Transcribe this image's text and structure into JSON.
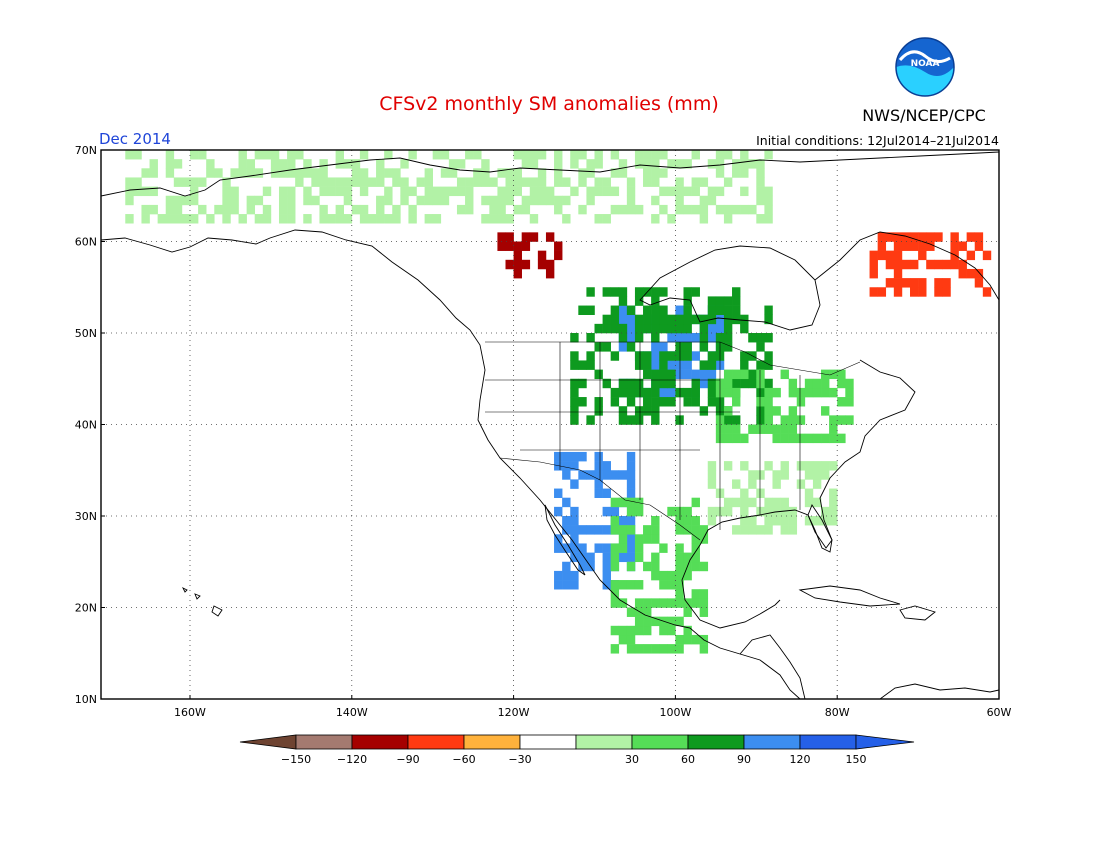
{
  "header": {
    "title": "CFSv2 monthly SM anomalies (mm)",
    "agency": "NWS/NCEP/CPC",
    "logo_text": "NOAA",
    "valid_month": "Dec 2014",
    "initial_conditions": "Initial conditions: 12Jul2014–21Jul2014"
  },
  "map": {
    "lat_labels": [
      "70N",
      "60N",
      "50N",
      "40N",
      "30N",
      "20N",
      "10N"
    ],
    "lon_labels": [
      "160W",
      "140W",
      "120W",
      "100W",
      "80W",
      "60W"
    ],
    "lat_values": [
      70,
      60,
      50,
      40,
      30,
      20,
      10
    ],
    "lon_values": [
      -160,
      -140,
      -120,
      -100,
      -80,
      -60
    ],
    "extent": {
      "lon_min": -171,
      "lon_max": -60,
      "lat_min": 10,
      "lat_max": 70
    },
    "grid": true,
    "ocean_color": "#ffffff",
    "coastline_color": "#000000"
  },
  "colorbar": {
    "labels": [
      "−150",
      "−120",
      "−90",
      "−60",
      "−30",
      "30",
      "60",
      "90",
      "120",
      "150"
    ],
    "colors": [
      "#6e4331",
      "#a47a70",
      "#a50000",
      "#ff3a12",
      "#ffb23c",
      "#ffffff",
      "#b2f2a6",
      "#55dd57",
      "#0e9a1f",
      "#3c8ef0",
      "#2560e8"
    ],
    "left_triangle_color": "#6e4331",
    "right_triangle_color": "#2560e8"
  },
  "anomaly_regions": [
    {
      "name": "upper-midwest-canada-wet",
      "lat": [
        43,
        53
      ],
      "lon": [
        -107,
        -94
      ],
      "class": "150",
      "color": "#3c8ef0"
    },
    {
      "name": "upper-midwest-green",
      "lat": [
        40,
        55
      ],
      "lon": [
        -113,
        -88
      ],
      "class": "120",
      "color": "#0e9a1f"
    },
    {
      "name": "great-lakes-green",
      "lat": [
        38,
        46
      ],
      "lon": [
        -95,
        -78
      ],
      "class": "90",
      "color": "#55dd57"
    },
    {
      "name": "southwest-wet",
      "lat": [
        22,
        37
      ],
      "lon": [
        -115,
        -105
      ],
      "class": "150",
      "color": "#3c8ef0"
    },
    {
      "name": "mexico-green",
      "lat": [
        15,
        32
      ],
      "lon": [
        -108,
        -96
      ],
      "class": "90",
      "color": "#55dd57"
    },
    {
      "name": "central-canada-dry",
      "lat": [
        56,
        61
      ],
      "lon": [
        -122,
        -114
      ],
      "class": "-90",
      "color": "#a50000"
    },
    {
      "name": "labrador-dry",
      "lat": [
        54,
        61
      ],
      "lon": [
        -76,
        -61
      ],
      "class": "-60",
      "color": "#ff3a12"
    },
    {
      "name": "arctic-green",
      "lat": [
        62,
        70
      ],
      "lon": [
        -168,
        -88
      ],
      "class": "60",
      "color": "#b2f2a6"
    },
    {
      "name": "southeast-green",
      "lat": [
        28,
        36
      ],
      "lon": [
        -96,
        -80
      ],
      "class": "60",
      "color": "#b2f2a6"
    }
  ]
}
